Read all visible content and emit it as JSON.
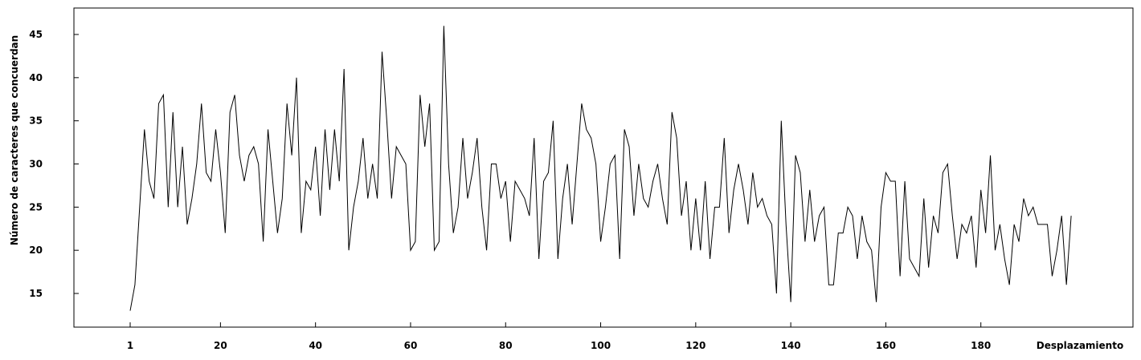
{
  "chart_data": {
    "type": "line",
    "title": "",
    "xlabel": "Desplazamiento",
    "ylabel": "Número de caracteres que concuerdan",
    "xlim": [
      1,
      200
    ],
    "ylim": [
      11.5,
      48.5
    ],
    "grid": false,
    "legend": "none",
    "line_color": "#000000",
    "x_ticks": [
      1,
      20,
      40,
      60,
      80,
      100,
      120,
      140,
      160,
      180
    ],
    "y_ticks": [
      15,
      20,
      25,
      30,
      35,
      40,
      45
    ],
    "x_start": 1,
    "series": [
      {
        "name": "",
        "values": [
          13,
          16,
          25,
          34,
          28,
          26,
          37,
          38,
          25,
          36,
          25,
          32,
          23,
          26,
          30,
          37,
          29,
          28,
          34,
          29,
          22,
          36,
          38,
          31,
          28,
          31,
          32,
          30,
          21,
          34,
          28,
          22,
          26,
          37,
          31,
          40,
          22,
          28,
          27,
          32,
          24,
          34,
          27,
          34,
          28,
          41,
          20,
          25,
          28,
          33,
          26,
          30,
          26,
          43,
          35,
          26,
          32,
          31,
          30,
          20,
          21,
          38,
          32,
          37,
          20,
          21,
          46,
          30,
          22,
          25,
          33,
          26,
          29,
          33,
          25,
          20,
          30,
          30,
          26,
          28,
          21,
          28,
          27,
          26,
          24,
          33,
          19,
          28,
          29,
          35,
          19,
          26,
          30,
          23,
          30,
          37,
          34,
          33,
          30,
          21,
          25,
          30,
          31,
          19,
          34,
          32,
          24,
          30,
          26,
          25,
          28,
          30,
          26,
          23,
          36,
          33,
          24,
          28,
          20,
          26,
          20,
          28,
          19,
          25,
          25,
          33,
          22,
          27,
          30,
          27,
          23,
          29,
          25,
          26,
          24,
          23,
          15,
          35,
          23,
          14,
          31,
          29,
          21,
          27,
          21,
          24,
          25,
          16,
          16,
          22,
          22,
          25,
          24,
          19,
          24,
          21,
          20,
          14,
          25,
          29,
          28,
          28,
          17,
          28,
          19,
          18,
          17,
          26,
          18,
          24,
          22,
          29,
          30,
          24,
          19,
          23,
          22,
          24,
          18,
          27,
          22,
          31,
          20,
          23,
          19,
          16,
          23,
          21,
          26,
          24,
          25,
          23,
          23,
          23,
          17,
          20,
          24,
          16,
          24
        ]
      }
    ]
  }
}
